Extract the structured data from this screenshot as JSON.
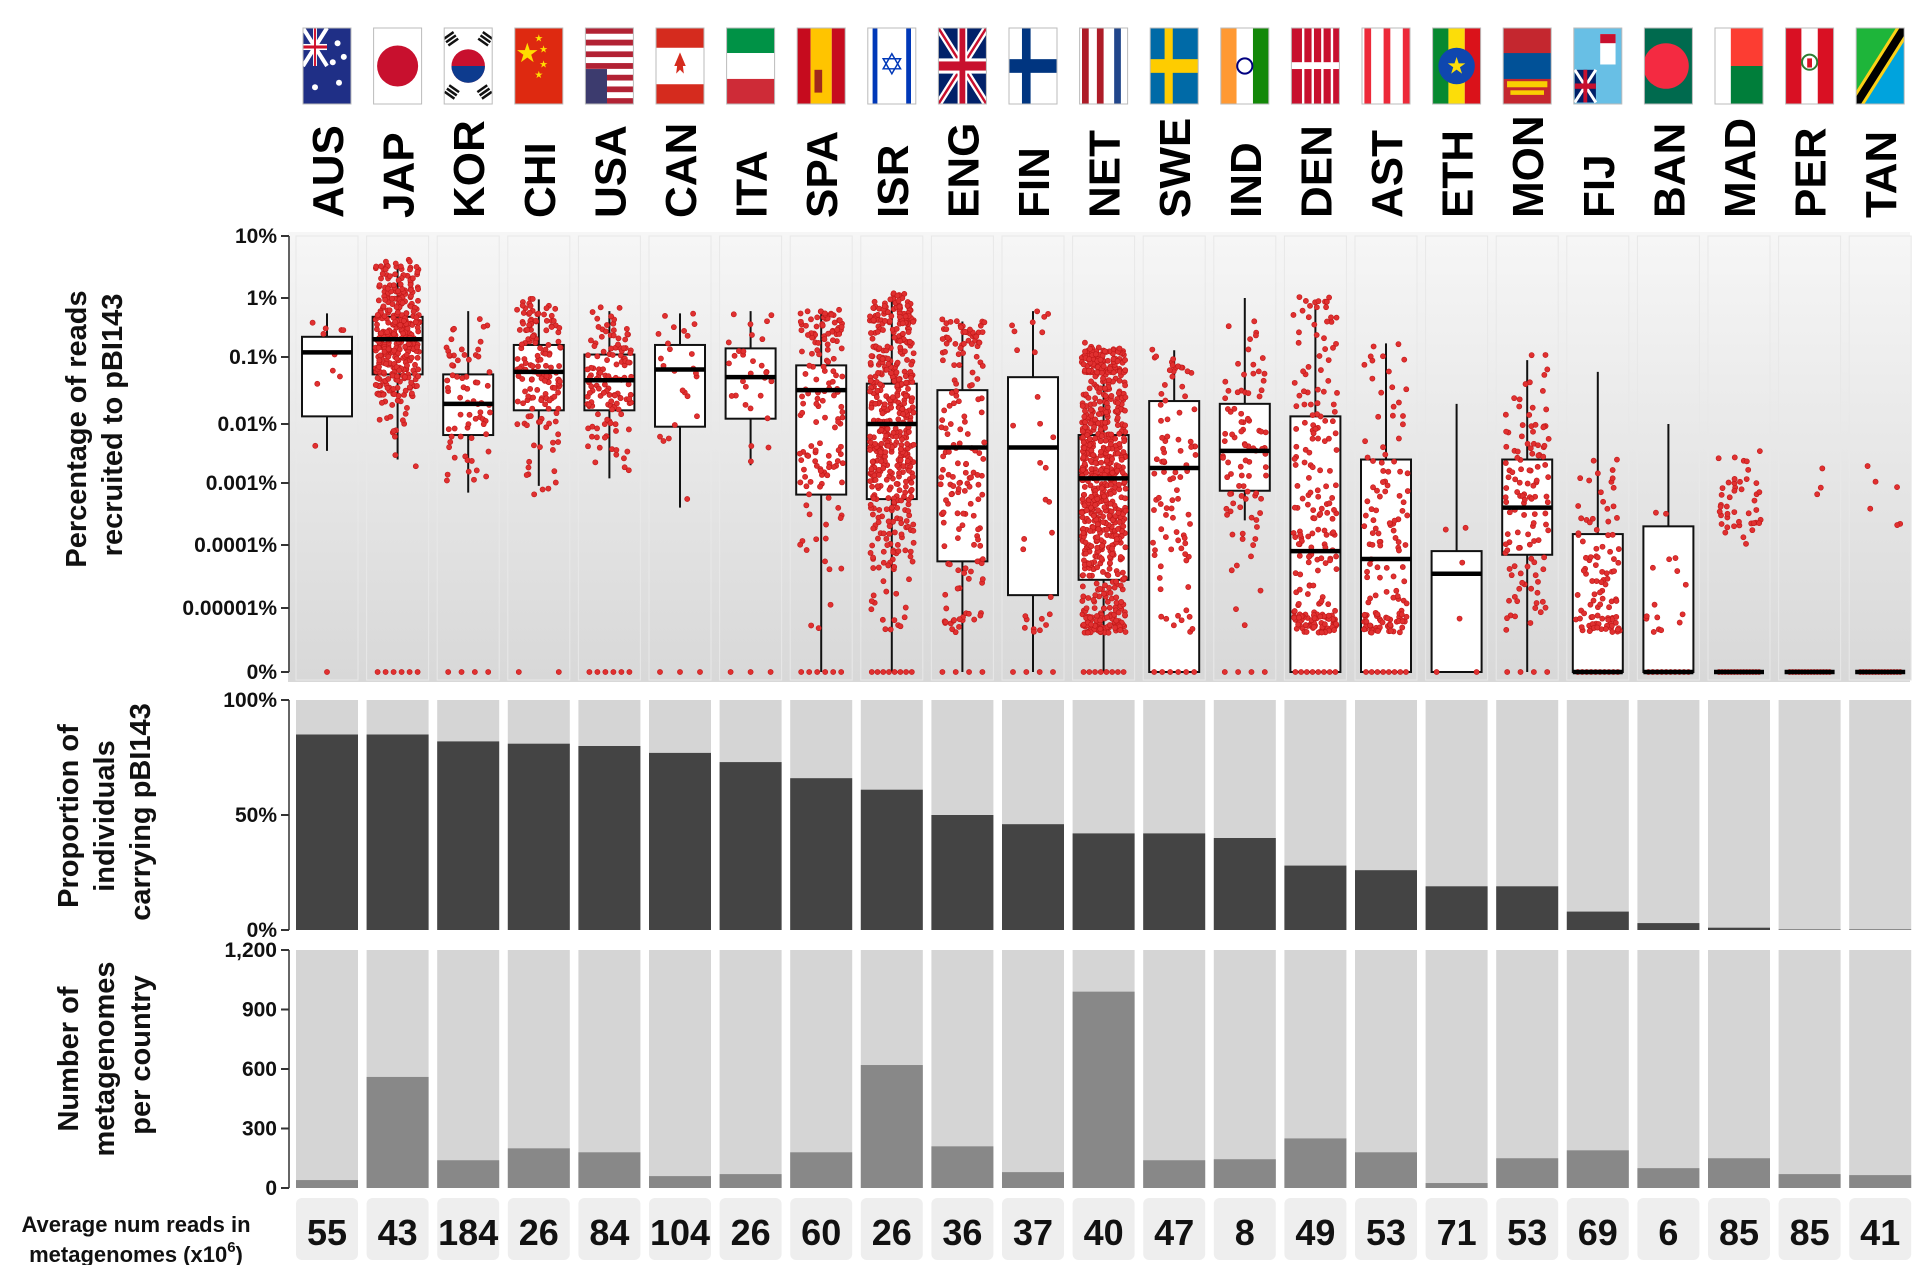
{
  "colors": {
    "dot": "#e03030",
    "dot_stroke": "#c01818",
    "bar_dark": "#444444",
    "bar_mid": "#888888",
    "column_bg": "#d5d5d5",
    "panel_bg_top": "#f2f2f2",
    "panel_bg_bottom": "#dcdcdc"
  },
  "countries": [
    {
      "code": "AUS",
      "flag": "australia-flag"
    },
    {
      "code": "JAP",
      "flag": "japan-flag"
    },
    {
      "code": "KOR",
      "flag": "south-korea-flag"
    },
    {
      "code": "CHI",
      "flag": "china-flag"
    },
    {
      "code": "USA",
      "flag": "usa-flag"
    },
    {
      "code": "CAN",
      "flag": "canada-flag"
    },
    {
      "code": "ITA",
      "flag": "italy-flag"
    },
    {
      "code": "SPA",
      "flag": "spain-flag"
    },
    {
      "code": "ISR",
      "flag": "israel-flag"
    },
    {
      "code": "ENG",
      "flag": "uk-flag"
    },
    {
      "code": "FIN",
      "flag": "finland-flag"
    },
    {
      "code": "NET",
      "flag": "netherlands-flag"
    },
    {
      "code": "SWE",
      "flag": "sweden-flag"
    },
    {
      "code": "IND",
      "flag": "india-flag"
    },
    {
      "code": "DEN",
      "flag": "denmark-flag"
    },
    {
      "code": "AST",
      "flag": "austria-flag"
    },
    {
      "code": "ETH",
      "flag": "ethiopia-flag"
    },
    {
      "code": "MON",
      "flag": "mongolia-flag"
    },
    {
      "code": "FIJ",
      "flag": "fiji-flag"
    },
    {
      "code": "BAN",
      "flag": "bangladesh-flag"
    },
    {
      "code": "MAD",
      "flag": "madagascar-flag"
    },
    {
      "code": "PER",
      "flag": "peru-flag"
    },
    {
      "code": "TAN",
      "flag": "tanzania-flag"
    }
  ],
  "chart_data": [
    {
      "type": "box",
      "ylabel_lines": [
        "Percentage of reads",
        "recruited to pBI143"
      ],
      "yscale": "log",
      "ticks": [
        {
          "label": "10%",
          "value": 10
        },
        {
          "label": "1%",
          "value": 1
        },
        {
          "label": "0.1%",
          "value": 0.1
        },
        {
          "label": "0.01%",
          "value": 0.01
        },
        {
          "label": "0.001%",
          "value": 0.001
        },
        {
          "label": "0.0001%",
          "value": 0.0001
        },
        {
          "label": "0.00001%",
          "value": 1e-05
        },
        {
          "label": "0%",
          "value": 0
        }
      ],
      "boxes": [
        {
          "category": "AUS",
          "whisker_low": 0.0035,
          "q1": 0.013,
          "median": 0.12,
          "q3": 0.22,
          "whisker_high": 0.55
        },
        {
          "category": "JAP",
          "whisker_low": 0.0025,
          "q1": 0.055,
          "median": 0.2,
          "q3": 0.48,
          "whisker_high": 3.5
        },
        {
          "category": "KOR",
          "whisker_low": 0.0007,
          "q1": 0.0065,
          "median": 0.02,
          "q3": 0.055,
          "whisker_high": 0.6
        },
        {
          "category": "CHI",
          "whisker_low": 0.0009,
          "q1": 0.016,
          "median": 0.06,
          "q3": 0.16,
          "whisker_high": 0.95
        },
        {
          "category": "USA",
          "whisker_low": 0.0012,
          "q1": 0.016,
          "median": 0.045,
          "q3": 0.11,
          "whisker_high": 0.6
        },
        {
          "category": "CAN",
          "whisker_low": 0.0004,
          "q1": 0.009,
          "median": 0.065,
          "q3": 0.16,
          "whisker_high": 0.55
        },
        {
          "category": "ITA",
          "whisker_low": 0.002,
          "q1": 0.012,
          "median": 0.05,
          "q3": 0.14,
          "whisker_high": 0.6
        },
        {
          "category": "SPA",
          "whisker_low": 0,
          "q1": 0.00065,
          "median": 0.032,
          "q3": 0.075,
          "whisker_high": 0.55
        },
        {
          "category": "ISR",
          "whisker_low": 0,
          "q1": 0.00055,
          "median": 0.01,
          "q3": 0.04,
          "whisker_high": 0.95
        },
        {
          "category": "ENG",
          "whisker_low": 0,
          "q1": 5.5e-05,
          "median": 0.004,
          "q3": 0.032,
          "whisker_high": 0.4
        },
        {
          "category": "FIN",
          "whisker_low": 0,
          "q1": 1.6e-05,
          "median": 0.004,
          "q3": 0.05,
          "whisker_high": 0.6
        },
        {
          "category": "NET",
          "whisker_low": 0,
          "q1": 2.8e-05,
          "median": 0.0012,
          "q3": 0.0065,
          "whisker_high": 0.14
        },
        {
          "category": "SWE",
          "whisker_low": 0,
          "q1": 0,
          "median": 0.0018,
          "q3": 0.022,
          "whisker_high": 0.13
        },
        {
          "category": "IND",
          "whisker_low": 0.00025,
          "q1": 0.00075,
          "median": 0.0035,
          "q3": 0.02,
          "whisker_high": 1.0
        },
        {
          "category": "DEN",
          "whisker_low": 0,
          "q1": 0,
          "median": 8e-05,
          "q3": 0.013,
          "whisker_high": 0.9
        },
        {
          "category": "AST",
          "whisker_low": 0,
          "q1": 0,
          "median": 6e-05,
          "q3": 0.0025,
          "whisker_high": 0.17
        },
        {
          "category": "ETH",
          "whisker_low": 0,
          "q1": 0,
          "median": 3.5e-05,
          "q3": 8e-05,
          "whisker_high": 0.02
        },
        {
          "category": "MON",
          "whisker_low": 0,
          "q1": 7e-05,
          "median": 0.0004,
          "q3": 0.0025,
          "whisker_high": 0.09
        },
        {
          "category": "FIJ",
          "whisker_low": 0,
          "q1": 0,
          "median": 0,
          "q3": 0.00015,
          "whisker_high": 0.06
        },
        {
          "category": "BAN",
          "whisker_low": 0,
          "q1": 0,
          "median": 0,
          "q3": 0.0002,
          "whisker_high": 0.01
        },
        {
          "category": "MAD",
          "whisker_low": 0,
          "q1": 0,
          "median": 0,
          "q3": 0,
          "whisker_high": 0
        },
        {
          "category": "PER",
          "whisker_low": 0,
          "q1": 0,
          "median": 0,
          "q3": 0,
          "whisker_high": 0
        },
        {
          "category": "TAN",
          "whisker_low": 0,
          "q1": 0,
          "median": 0,
          "q3": 0,
          "whisker_high": 0
        }
      ],
      "point_series": "individual metagenome values (red jittered dots)"
    },
    {
      "type": "bar",
      "ylabel_lines": [
        "Proportion of",
        "individuals",
        "carrying pBI143"
      ],
      "ylim": [
        0,
        100
      ],
      "ticks": [
        {
          "label": "100%",
          "value": 100
        },
        {
          "label": "50%",
          "value": 50
        },
        {
          "label": "0%",
          "value": 0
        }
      ],
      "categories": [
        "AUS",
        "JAP",
        "KOR",
        "CHI",
        "USA",
        "CAN",
        "ITA",
        "SPA",
        "ISR",
        "ENG",
        "FIN",
        "NET",
        "SWE",
        "IND",
        "DEN",
        "AST",
        "ETH",
        "MON",
        "FIJ",
        "BAN",
        "MAD",
        "PER",
        "TAN"
      ],
      "values": [
        85,
        85,
        82,
        81,
        80,
        77,
        73,
        66,
        61,
        50,
        46,
        42,
        42,
        40,
        28,
        26,
        19,
        19,
        8,
        3,
        1,
        0,
        0
      ]
    },
    {
      "type": "bar",
      "ylabel_lines": [
        "Number of",
        "metagenomes",
        "per country"
      ],
      "ylim": [
        0,
        1200
      ],
      "ticks": [
        {
          "label": "1,200",
          "value": 1200
        },
        {
          "label": "900",
          "value": 900
        },
        {
          "label": "600",
          "value": 600
        },
        {
          "label": "300",
          "value": 300
        },
        {
          "label": "0",
          "value": 0
        }
      ],
      "categories": [
        "AUS",
        "JAP",
        "KOR",
        "CHI",
        "USA",
        "CAN",
        "ITA",
        "SPA",
        "ISR",
        "ENG",
        "FIN",
        "NET",
        "SWE",
        "IND",
        "DEN",
        "AST",
        "ETH",
        "MON",
        "FIJ",
        "BAN",
        "MAD",
        "PER",
        "TAN"
      ],
      "values": [
        40,
        560,
        140,
        200,
        180,
        60,
        70,
        180,
        620,
        210,
        80,
        990,
        140,
        145,
        250,
        180,
        25,
        150,
        190,
        100,
        150,
        70,
        65
      ]
    }
  ],
  "footer": {
    "label_line1": "Average num reads in",
    "label_line2": "metagenomes (x10",
    "label_sup": "6",
    "label_close": ")",
    "values": [
      55,
      43,
      184,
      26,
      84,
      104,
      26,
      60,
      26,
      36,
      37,
      40,
      47,
      8,
      49,
      53,
      71,
      53,
      69,
      6,
      85,
      85,
      41
    ]
  }
}
